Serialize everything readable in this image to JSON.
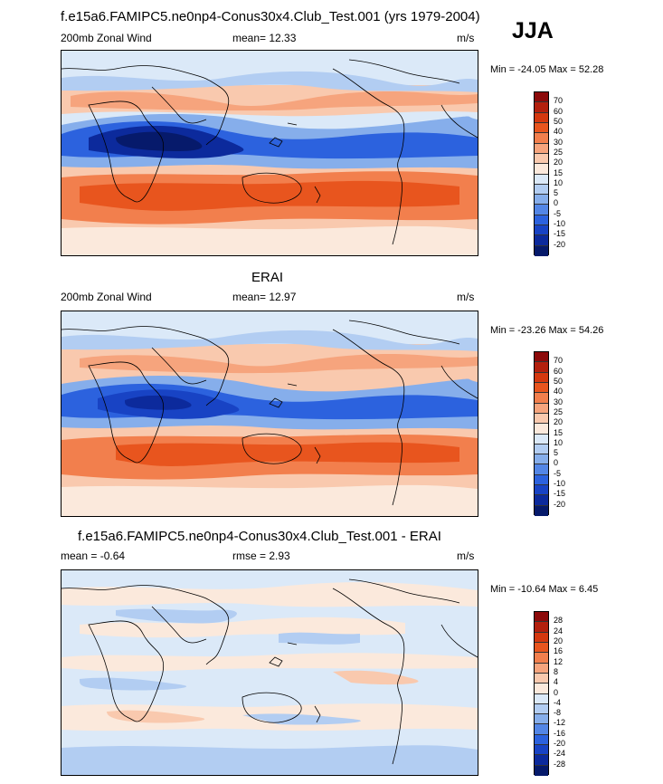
{
  "panels": [
    {
      "title": "f.e15a6.FAMIPC5.ne0np4-Conus30x4.Club_Test.001 (yrs 1979-2004)",
      "left": "200mb Zonal Wind",
      "center": "mean=  12.33",
      "units": "m/s",
      "minmax": "Min = -24.05 Max =  52.28",
      "levels": [
        "70",
        "60",
        "50",
        "40",
        "30",
        "25",
        "20",
        "15",
        "10",
        "5",
        "0",
        "-5",
        "-10",
        "-15",
        "-20"
      ],
      "colors": [
        "#8c0a0a",
        "#b3200d",
        "#d4380f",
        "#e8551e",
        "#f27f4d",
        "#f6a47d",
        "#f9c9ae",
        "#fbe9dc",
        "#dbe9f8",
        "#b2cdf2",
        "#86aeeb",
        "#5386e6",
        "#2c62de",
        "#1843c4",
        "#0c2a9c",
        "#061a6b"
      ]
    },
    {
      "title": "ERAI",
      "left": "200mb Zonal Wind",
      "center": "mean=  12.97",
      "units": "m/s",
      "minmax": "Min = -23.26 Max =  54.26",
      "levels": [
        "70",
        "60",
        "50",
        "40",
        "30",
        "25",
        "20",
        "15",
        "10",
        "5",
        "0",
        "-5",
        "-10",
        "-15",
        "-20"
      ],
      "colors": [
        "#8c0a0a",
        "#b3200d",
        "#d4380f",
        "#e8551e",
        "#f27f4d",
        "#f6a47d",
        "#f9c9ae",
        "#fbe9dc",
        "#dbe9f8",
        "#b2cdf2",
        "#86aeeb",
        "#5386e6",
        "#2c62de",
        "#1843c4",
        "#0c2a9c",
        "#061a6b"
      ]
    },
    {
      "title": "f.e15a6.FAMIPC5.ne0np4-Conus30x4.Club_Test.001 - ERAI",
      "left": "mean =  -0.64",
      "center": "rmse =   2.93",
      "units": "m/s",
      "minmax": "Min = -10.64 Max =   6.45",
      "levels": [
        "28",
        "24",
        "20",
        "16",
        "12",
        "8",
        "4",
        "0",
        "-4",
        "-8",
        "-12",
        "-16",
        "-20",
        "-24",
        "-28"
      ],
      "colors": [
        "#8c0a0a",
        "#b3200d",
        "#d4380f",
        "#e8551e",
        "#f27f4d",
        "#f6a47d",
        "#f9c9ae",
        "#fbe9dc",
        "#dbe9f8",
        "#b2cdf2",
        "#86aeeb",
        "#5386e6",
        "#2c62de",
        "#1843c4",
        "#0c2a9c",
        "#061a6b"
      ]
    }
  ],
  "season": "JJA"
}
